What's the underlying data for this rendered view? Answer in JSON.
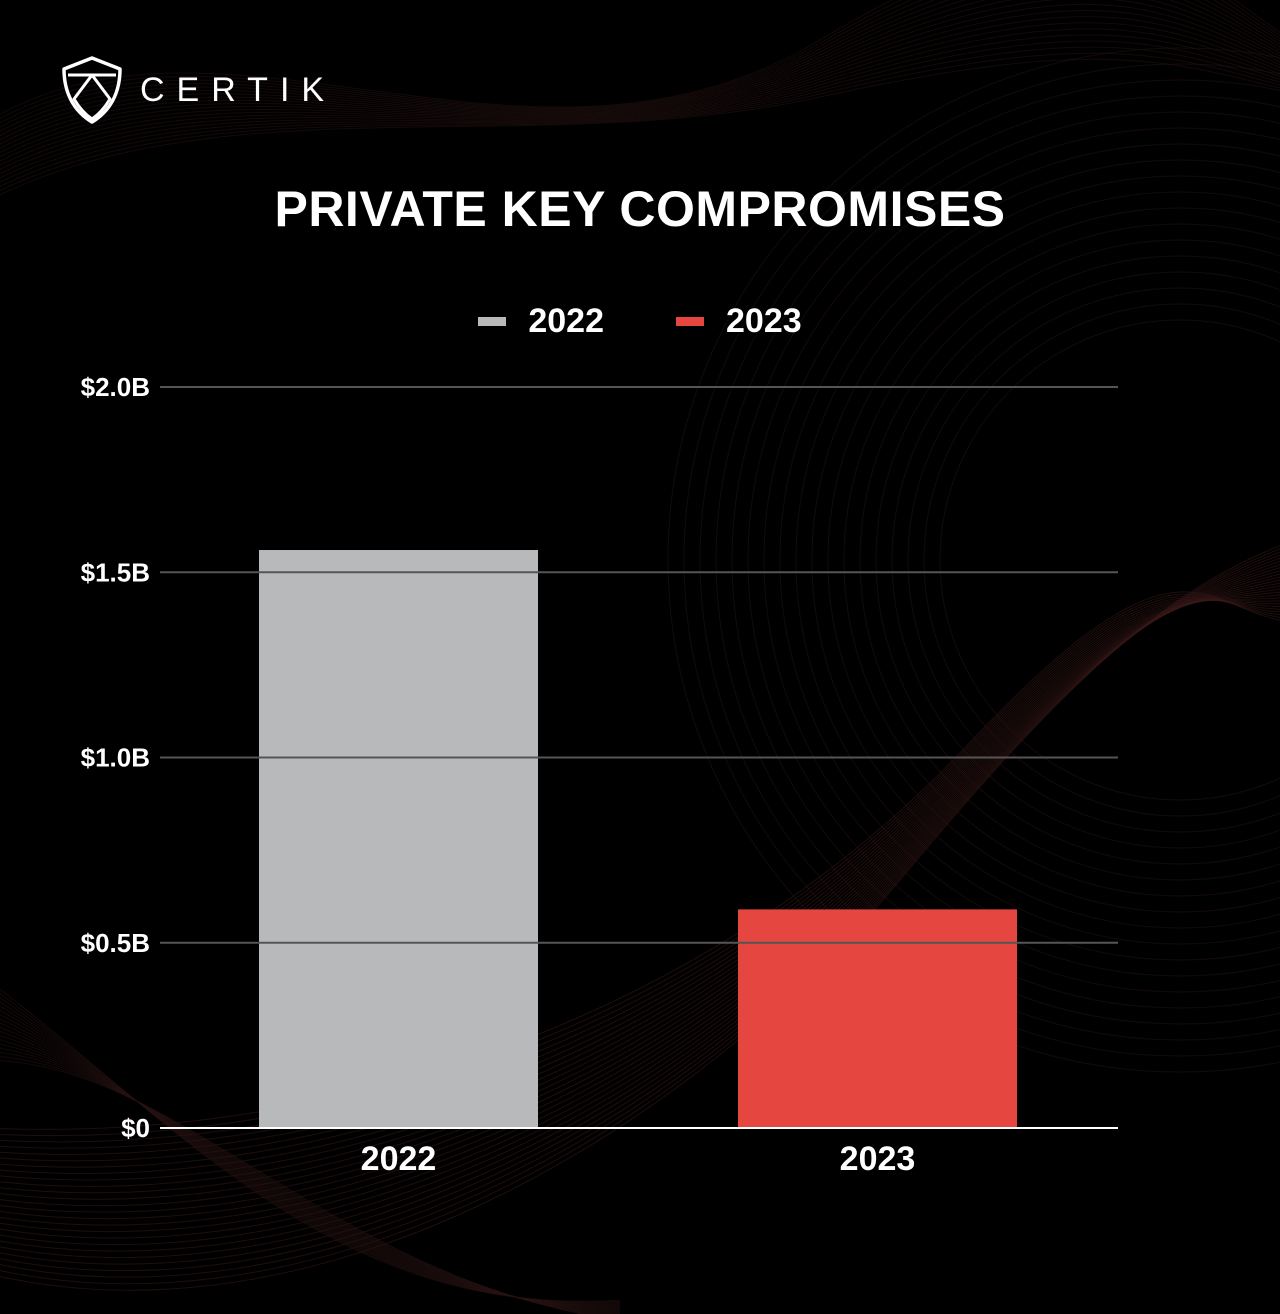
{
  "brand": {
    "name": "CERTIK",
    "logo_icon": "certik-shield-icon"
  },
  "colors": {
    "background": "#000000",
    "series_2022": "#b8b9bb",
    "series_2023": "#e5463f",
    "gridline": "#555555",
    "text": "#ffffff"
  },
  "chart_data": {
    "type": "bar",
    "title": "PRIVATE KEY COMPROMISES",
    "categories": [
      "2022",
      "2023"
    ],
    "series": [
      {
        "name": "2022",
        "values": [
          1.56,
          null
        ],
        "color": "#b8b9bb"
      },
      {
        "name": "2023",
        "values": [
          null,
          0.59
        ],
        "color": "#e5463f"
      }
    ],
    "values": [
      1.56,
      0.59
    ],
    "ylim": [
      0,
      2.0
    ],
    "yticks": [
      0,
      0.5,
      1.0,
      1.5,
      2.0
    ],
    "ytick_labels": [
      "$0",
      "$0.5B",
      "$1.0B",
      "$1.5B",
      "$2.0B"
    ],
    "xlabel": "",
    "ylabel": "",
    "legend_position": "top-center",
    "grid": true
  }
}
